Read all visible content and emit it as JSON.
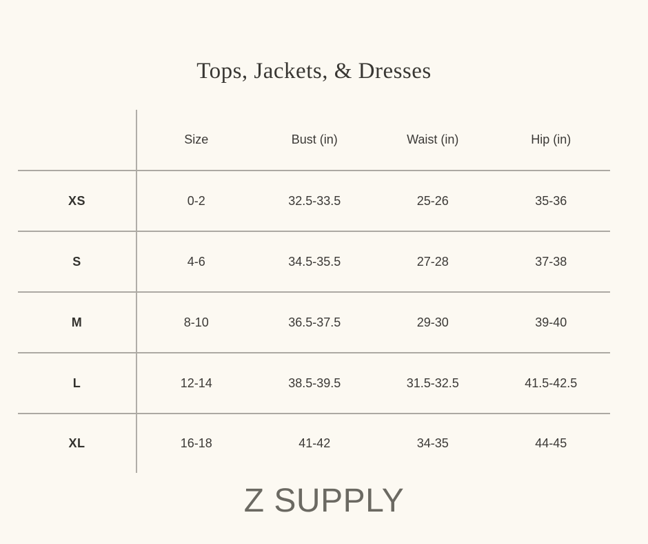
{
  "page": {
    "background_color": "#FCF9F2",
    "text_color": "#3B3936",
    "rule_color": "#ACA9A3"
  },
  "chart_data": {
    "type": "table",
    "title": "Tops, Jackets, & Dresses",
    "columns": [
      "Size",
      "Bust (in)",
      "Waist (in)",
      "Hip (in)"
    ],
    "row_labels": [
      "XS",
      "S",
      "M",
      "L",
      "XL"
    ],
    "rows": [
      [
        "0-2",
        "32.5-33.5",
        "25-26",
        "35-36"
      ],
      [
        "4-6",
        "34.5-35.5",
        "27-28",
        "37-38"
      ],
      [
        "8-10",
        "36.5-37.5",
        "29-30",
        "39-40"
      ],
      [
        "12-14",
        "38.5-39.5",
        "31.5-32.5",
        "41.5-42.5"
      ],
      [
        "16-18",
        "41-42",
        "34-35",
        "44-45"
      ]
    ],
    "layout": {
      "header_position": "top",
      "row_label_divider": "vertical-rule",
      "row_dividers": "horizontal-rules",
      "outer_border": "none"
    }
  },
  "brand": {
    "label": "Z SUPPLY",
    "color": "#6B6962"
  }
}
